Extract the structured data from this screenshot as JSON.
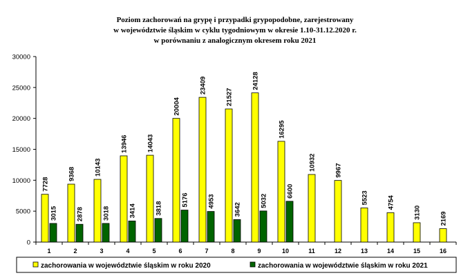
{
  "chart_data": {
    "type": "bar",
    "title_lines": [
      "Poziom zachorowań na grypę i przypadki grypopodobne, zarejestrowany",
      "w województwie śląskim w cyklu tygodniowym w okresie 1.10-31.12.2020 r.",
      "w porównaniu z analogicznym okresem roku 2021"
    ],
    "categories": [
      "1",
      "2",
      "3",
      "4",
      "5",
      "6",
      "7",
      "8",
      "9",
      "10",
      "11",
      "12",
      "13",
      "14",
      "15",
      "16"
    ],
    "series": [
      {
        "name": "zachorowania w województwie śląskim w roku 2020",
        "color": "#ffff00",
        "values": [
          7728,
          9368,
          10143,
          13946,
          14043,
          20004,
          23409,
          21527,
          24128,
          16295,
          10932,
          9967,
          5523,
          4754,
          3130,
          2169
        ]
      },
      {
        "name": "zachorowania w województwie śląskim w roku 2021",
        "color": "#006400",
        "values": [
          3015,
          2878,
          3018,
          3414,
          3818,
          5176,
          4953,
          3642,
          5032,
          6600,
          null,
          null,
          null,
          null,
          null,
          null
        ]
      }
    ],
    "yticks": [
      "0",
      "5000",
      "10000",
      "15000",
      "20000",
      "25000",
      "30000"
    ],
    "ylim": [
      0,
      30000
    ],
    "grid": false,
    "legend_position": "bottom"
  }
}
